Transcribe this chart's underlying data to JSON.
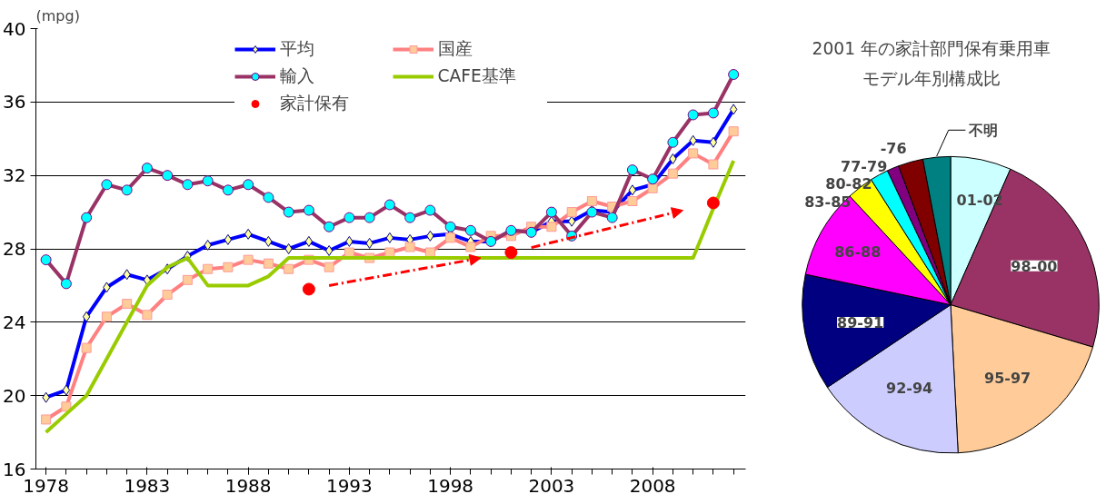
{
  "chart_data": [
    {
      "type": "line",
      "ylabel": "(mpg)",
      "x": [
        1978,
        1979,
        1980,
        1981,
        1982,
        1983,
        1984,
        1985,
        1986,
        1987,
        1988,
        1989,
        1990,
        1991,
        1992,
        1993,
        1994,
        1995,
        1996,
        1997,
        1998,
        1999,
        2000,
        2001,
        2002,
        2003,
        2004,
        2005,
        2006,
        2007,
        2008,
        2009,
        2010,
        2011,
        2012
      ],
      "xlim": [
        1977.5,
        2012.6
      ],
      "xticks": [
        1978,
        1983,
        1988,
        1993,
        1998,
        2003,
        2008
      ],
      "ylim": [
        16,
        40
      ],
      "yticks": [
        16,
        20,
        24,
        28,
        32,
        36,
        40
      ],
      "grid": "y",
      "legend": "top",
      "line_style": "solid",
      "series": [
        {
          "name": "平均",
          "color": "#0000ff",
          "marker": "diamond",
          "values": [
            19.9,
            20.3,
            24.3,
            25.9,
            26.6,
            26.3,
            26.9,
            27.6,
            28.2,
            28.5,
            28.8,
            28.4,
            28.0,
            28.4,
            27.9,
            28.4,
            28.3,
            28.6,
            28.5,
            28.7,
            28.8,
            28.4,
            28.4,
            29.0,
            28.9,
            29.5,
            29.5,
            30.1,
            30.0,
            31.2,
            31.5,
            32.9,
            33.9,
            33.8,
            35.6
          ]
        },
        {
          "name": "国産",
          "color": "#ff8080",
          "marker": "square",
          "values": [
            18.7,
            19.4,
            22.6,
            24.3,
            25.0,
            24.4,
            25.5,
            26.3,
            26.9,
            27.0,
            27.4,
            27.2,
            26.9,
            27.4,
            27.0,
            27.8,
            27.5,
            27.8,
            28.1,
            27.8,
            28.6,
            28.1,
            28.7,
            28.7,
            29.2,
            29.2,
            30.0,
            30.6,
            30.3,
            30.6,
            31.3,
            32.1,
            33.2,
            32.6,
            34.4
          ]
        },
        {
          "name": "輸入",
          "color": "#993366",
          "marker": "circle",
          "values": [
            27.4,
            26.1,
            29.7,
            31.5,
            31.2,
            32.4,
            32.0,
            31.5,
            31.7,
            31.2,
            31.5,
            30.8,
            30.0,
            30.1,
            29.2,
            29.7,
            29.7,
            30.4,
            29.7,
            30.1,
            29.2,
            29.0,
            28.4,
            29.0,
            28.9,
            30.0,
            28.7,
            30.0,
            29.7,
            32.3,
            31.8,
            33.8,
            35.3,
            35.4,
            37.5
          ]
        },
        {
          "name": "CAFE基準",
          "color": "#99cc00",
          "marker": "none",
          "values": [
            18.0,
            19.0,
            20.0,
            22.0,
            24.0,
            26.0,
            27.0,
            27.5,
            26.0,
            26.0,
            26.0,
            26.5,
            27.5,
            27.5,
            27.5,
            27.5,
            27.5,
            27.5,
            27.5,
            27.5,
            27.5,
            27.5,
            27.5,
            27.5,
            27.5,
            27.5,
            27.5,
            27.5,
            27.5,
            27.5,
            27.5,
            27.5,
            27.5,
            30.2,
            32.8
          ]
        },
        {
          "name": "家計保有",
          "type": "scatter",
          "color": "#ff0000",
          "marker": "circle",
          "x": [
            1991,
            2001,
            2011
          ],
          "values": [
            25.8,
            27.8,
            30.5
          ]
        }
      ]
    },
    {
      "type": "pie",
      "title": "2001 年の家計部門保有乗用車",
      "subtitle": "モデル年別構成比",
      "categories": [
        "01-02",
        "98-00",
        "95-97",
        "92-94",
        "89-91",
        "86-88",
        "83-85",
        "80-82",
        "77-79",
        "-76",
        "不明"
      ],
      "values": [
        6.6,
        23.0,
        19.6,
        16.4,
        12.7,
        9.8,
        2.9,
        2.0,
        1.3,
        2.7,
        3.0
      ],
      "colors": [
        "#ccffff",
        "#993366",
        "#ffcc99",
        "#ccccff",
        "#000080",
        "#ff00ff",
        "#ffff00",
        "#00ffff",
        "#800080",
        "#800000",
        "#008080"
      ]
    }
  ]
}
